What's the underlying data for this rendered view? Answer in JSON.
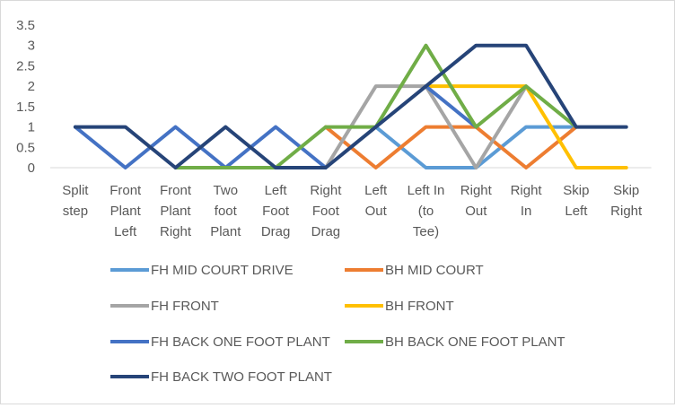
{
  "chart_data": {
    "type": "line",
    "title": "",
    "xlabel": "",
    "ylabel": "",
    "ylim": [
      0,
      3.5
    ],
    "y_ticks": [
      "0",
      "0.5",
      "1",
      "1.5",
      "2",
      "2.5",
      "3",
      "3.5"
    ],
    "grid": false,
    "legend_position": "bottom",
    "categories": [
      [
        "Split",
        "step"
      ],
      [
        "Front",
        "Plant",
        "Left"
      ],
      [
        "Front",
        "Plant",
        "Right"
      ],
      [
        "Two",
        "foot",
        "Plant"
      ],
      [
        "Left",
        "Foot",
        "Drag"
      ],
      [
        "Right",
        "Foot",
        "Drag"
      ],
      [
        "Left",
        "Out"
      ],
      [
        "Left In",
        "(to",
        "Tee)"
      ],
      [
        "Right",
        "Out"
      ],
      [
        "Right",
        "In"
      ],
      [
        "Skip",
        "Left"
      ],
      [
        "Skip",
        "Right"
      ]
    ],
    "series": [
      {
        "name": "FH MID COURT DRIVE",
        "color": "#5B9BD5",
        "values": [
          null,
          null,
          null,
          null,
          null,
          null,
          1,
          0,
          0,
          1,
          1,
          null
        ]
      },
      {
        "name": "BH MID COURT",
        "color": "#ED7D31",
        "values": [
          null,
          null,
          null,
          null,
          null,
          1,
          0,
          1,
          1,
          0,
          1,
          null
        ]
      },
      {
        "name": "FH FRONT",
        "color": "#A5A5A5",
        "values": [
          null,
          null,
          null,
          null,
          null,
          0,
          2,
          2,
          0,
          2,
          null,
          null
        ]
      },
      {
        "name": "BH FRONT",
        "color": "#FFC000",
        "values": [
          null,
          null,
          null,
          null,
          null,
          null,
          null,
          2,
          2,
          2,
          0,
          0
        ]
      },
      {
        "name": "FH BACK ONE FOOT PLANT",
        "color": "#4472C4",
        "values": [
          1,
          0,
          1,
          0,
          1,
          0,
          null,
          2,
          1,
          null,
          null,
          null
        ]
      },
      {
        "name": "BH BACK ONE FOOT PLANT",
        "color": "#70AD47",
        "values": [
          null,
          null,
          0,
          0,
          0,
          1,
          1,
          3,
          1,
          2,
          1,
          null
        ]
      },
      {
        "name": "FH BACK TWO FOOT PLANT",
        "color": "#264478",
        "values": [
          1,
          1,
          0,
          1,
          0,
          0,
          1,
          2,
          3,
          3,
          1,
          1
        ]
      }
    ]
  }
}
